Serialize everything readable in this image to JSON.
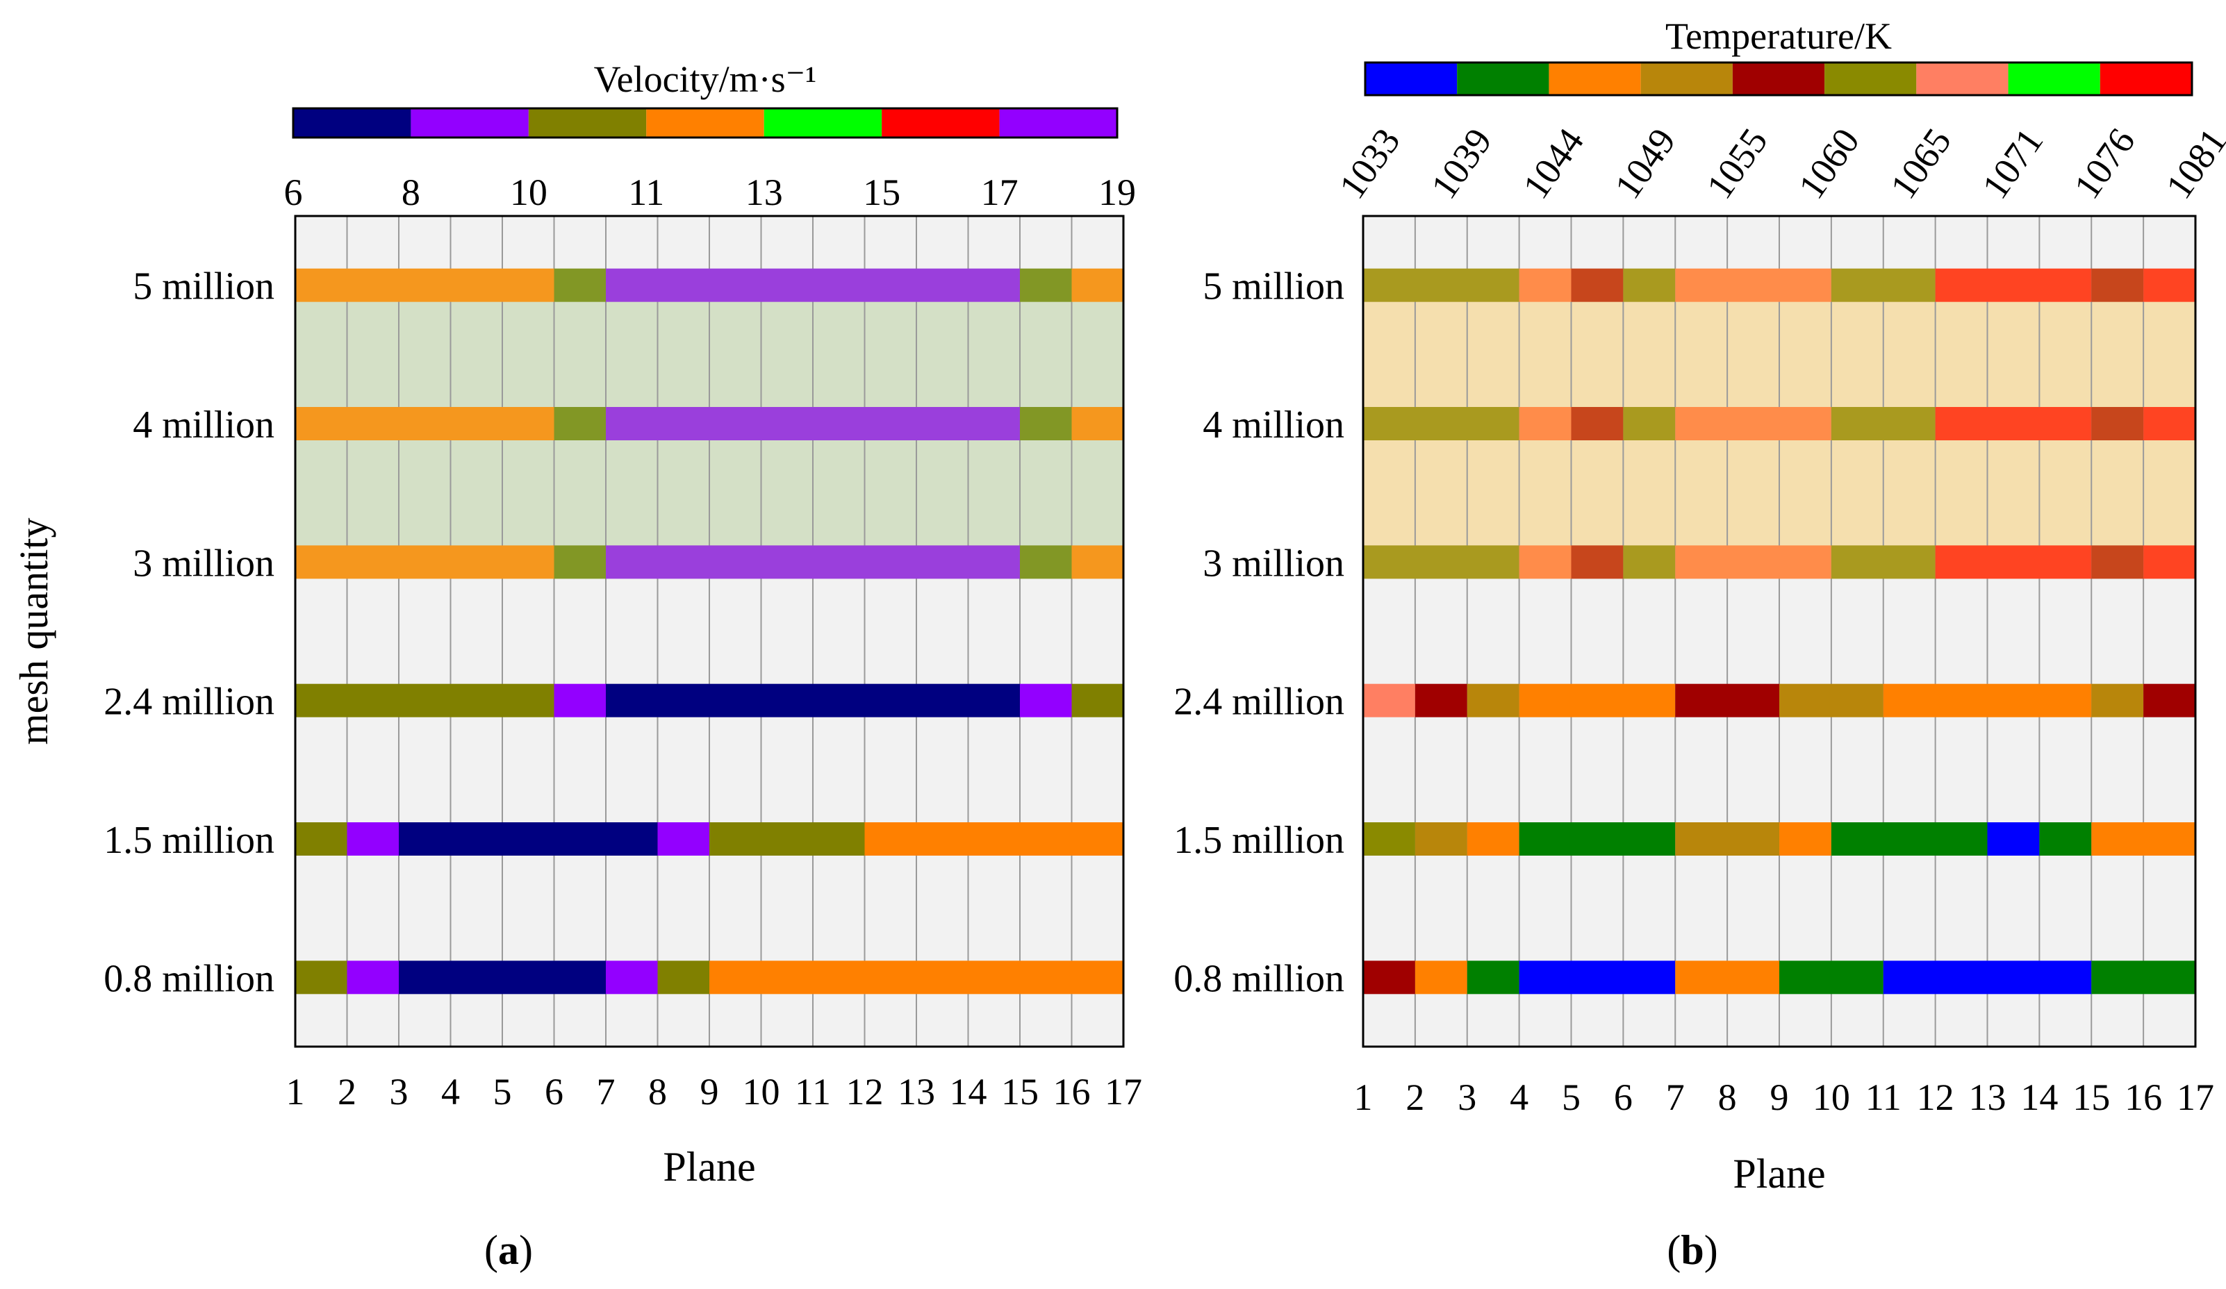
{
  "figure": {
    "panel_a_label": "a",
    "panel_b_label": "b"
  },
  "chart_data": [
    {
      "type": "heatmap",
      "panel": "a",
      "colorbar_title": "Velocity/m·s⁻¹",
      "colorbar_ticks": [
        "6",
        "8",
        "10",
        "11",
        "13",
        "15",
        "17",
        "19"
      ],
      "colorbar_colors": [
        "#000080",
        "#9300FF",
        "#808000",
        "#FF8000",
        "#00FF00",
        "#FF0000",
        "#9300FF"
      ],
      "xlabel": "Plane",
      "ylabel": "mesh quantity",
      "x_ticks": [
        "1",
        "2",
        "3",
        "4",
        "5",
        "6",
        "7",
        "8",
        "9",
        "10",
        "11",
        "12",
        "13",
        "14",
        "15",
        "16",
        "17"
      ],
      "rows": [
        {
          "label": "5 million",
          "segments": [
            [
              1,
              6,
              "#F5971E"
            ],
            [
              6,
              7,
              "#829725"
            ],
            [
              7,
              15,
              "#9A3FDC"
            ],
            [
              15,
              16,
              "#829725"
            ],
            [
              16,
              17,
              "#F5971E"
            ]
          ]
        },
        {
          "label": "4 million",
          "segments": [
            [
              1,
              6,
              "#F5971E"
            ],
            [
              6,
              7,
              "#829725"
            ],
            [
              7,
              15,
              "#9A3FDC"
            ],
            [
              15,
              16,
              "#829725"
            ],
            [
              16,
              17,
              "#F5971E"
            ]
          ]
        },
        {
          "label": "3 million",
          "segments": [
            [
              1,
              6,
              "#F5971E"
            ],
            [
              6,
              7,
              "#829725"
            ],
            [
              7,
              15,
              "#9A3FDC"
            ],
            [
              15,
              16,
              "#829725"
            ],
            [
              16,
              17,
              "#F5971E"
            ]
          ]
        },
        {
          "label": "2.4 million",
          "segments": [
            [
              1,
              6,
              "#808000"
            ],
            [
              6,
              7,
              "#9300FF"
            ],
            [
              7,
              15,
              "#000080"
            ],
            [
              15,
              16,
              "#9300FF"
            ],
            [
              16,
              17,
              "#808000"
            ]
          ]
        },
        {
          "label": "1.5 million",
          "segments": [
            [
              1,
              2,
              "#808000"
            ],
            [
              2,
              3,
              "#9300FF"
            ],
            [
              3,
              8,
              "#000080"
            ],
            [
              8,
              9,
              "#9300FF"
            ],
            [
              9,
              12,
              "#808000"
            ],
            [
              12,
              17,
              "#FF8000"
            ]
          ]
        },
        {
          "label": "0.8 million",
          "segments": [
            [
              1,
              2,
              "#808000"
            ],
            [
              2,
              3,
              "#9300FF"
            ],
            [
              3,
              7,
              "#000080"
            ],
            [
              7,
              8,
              "#9300FF"
            ],
            [
              8,
              9,
              "#808000"
            ],
            [
              9,
              17,
              "#FF8000"
            ]
          ]
        }
      ],
      "highlight": {
        "rows": [
          "5 million",
          "3 million"
        ],
        "color": "#D4E0C6"
      }
    },
    {
      "type": "heatmap",
      "panel": "b",
      "colorbar_title": "Temperature/K",
      "colorbar_ticks": [
        "1033",
        "1039",
        "1044",
        "1049",
        "1055",
        "1060",
        "1065",
        "1071",
        "1076",
        "1081"
      ],
      "colorbar_colors": [
        "#0000FF",
        "#008000",
        "#FF8000",
        "#B8860B",
        "#A00000",
        "#8A8A00",
        "#FF7F62",
        "#00FF00",
        "#FF0000"
      ],
      "xlabel": "Plane",
      "ylabel": "",
      "x_ticks": [
        "1",
        "2",
        "3",
        "4",
        "5",
        "6",
        "7",
        "8",
        "9",
        "10",
        "11",
        "12",
        "13",
        "14",
        "15",
        "16",
        "17"
      ],
      "rows": [
        {
          "label": "5 million",
          "segments": [
            [
              1,
              4,
              "#A99A1F"
            ],
            [
              4,
              5,
              "#FF8C4A"
            ],
            [
              5,
              6,
              "#C7461C"
            ],
            [
              6,
              7,
              "#A99A1F"
            ],
            [
              7,
              10,
              "#FF8C4A"
            ],
            [
              10,
              12,
              "#A99A1F"
            ],
            [
              12,
              15,
              "#FF4422"
            ],
            [
              15,
              16,
              "#C7461C"
            ],
            [
              16,
              17,
              "#FF4422"
            ]
          ]
        },
        {
          "label": "4 million",
          "segments": [
            [
              1,
              4,
              "#A99A1F"
            ],
            [
              4,
              5,
              "#FF8C4A"
            ],
            [
              5,
              6,
              "#C7461C"
            ],
            [
              6,
              7,
              "#A99A1F"
            ],
            [
              7,
              10,
              "#FF8C4A"
            ],
            [
              10,
              12,
              "#A99A1F"
            ],
            [
              12,
              15,
              "#FF4422"
            ],
            [
              15,
              16,
              "#C7461C"
            ],
            [
              16,
              17,
              "#FF4422"
            ]
          ]
        },
        {
          "label": "3 million",
          "segments": [
            [
              1,
              4,
              "#A99A1F"
            ],
            [
              4,
              5,
              "#FF8C4A"
            ],
            [
              5,
              6,
              "#C7461C"
            ],
            [
              6,
              7,
              "#A99A1F"
            ],
            [
              7,
              10,
              "#FF8C4A"
            ],
            [
              10,
              12,
              "#A99A1F"
            ],
            [
              12,
              15,
              "#FF4422"
            ],
            [
              15,
              16,
              "#C7461C"
            ],
            [
              16,
              17,
              "#FF4422"
            ]
          ]
        },
        {
          "label": "2.4 million",
          "segments": [
            [
              1,
              2,
              "#FF7F62"
            ],
            [
              2,
              3,
              "#A00000"
            ],
            [
              3,
              4,
              "#B8860B"
            ],
            [
              4,
              7,
              "#FF8000"
            ],
            [
              7,
              9,
              "#A00000"
            ],
            [
              9,
              11,
              "#B8860B"
            ],
            [
              11,
              15,
              "#FF8000"
            ],
            [
              15,
              16,
              "#B8860B"
            ],
            [
              16,
              17,
              "#A00000"
            ]
          ]
        },
        {
          "label": "1.5 million",
          "segments": [
            [
              1,
              2,
              "#8A8A00"
            ],
            [
              2,
              3,
              "#B8860B"
            ],
            [
              3,
              4,
              "#FF8000"
            ],
            [
              4,
              7,
              "#008000"
            ],
            [
              7,
              9,
              "#B8860B"
            ],
            [
              9,
              10,
              "#FF8000"
            ],
            [
              10,
              13,
              "#008000"
            ],
            [
              13,
              14,
              "#0000FF"
            ],
            [
              14,
              15,
              "#008000"
            ],
            [
              15,
              17,
              "#FF8000"
            ]
          ]
        },
        {
          "label": "0.8 million",
          "segments": [
            [
              1,
              2,
              "#A00000"
            ],
            [
              2,
              3,
              "#FF8000"
            ],
            [
              3,
              4,
              "#008000"
            ],
            [
              4,
              7,
              "#0000FF"
            ],
            [
              7,
              9,
              "#FF8000"
            ],
            [
              9,
              11,
              "#008000"
            ],
            [
              11,
              15,
              "#0000FF"
            ],
            [
              15,
              17,
              "#008000"
            ]
          ]
        }
      ],
      "highlight": {
        "rows": [
          "5 million",
          "3 million"
        ],
        "color": "#F5DFAE"
      }
    }
  ]
}
